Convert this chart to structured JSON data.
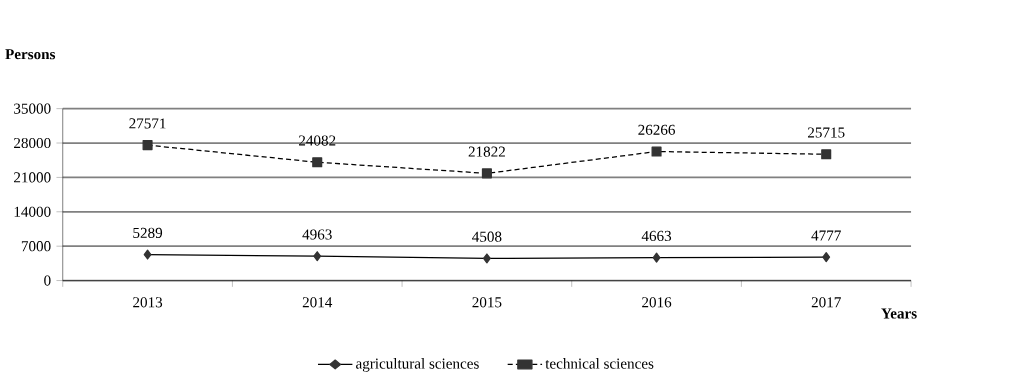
{
  "chart_data": {
    "type": "line",
    "xlabel": "Years",
    "ylabel": "Persons",
    "categories": [
      "2013",
      "2014",
      "2015",
      "2016",
      "2017"
    ],
    "series": [
      {
        "name": "agricultural sciences",
        "color": "#000000",
        "marker": "diamond",
        "line_style": "solid",
        "values": [
          5289,
          4963,
          4508,
          4663,
          4777
        ]
      },
      {
        "name": "technical sciences",
        "color": "#000000",
        "marker": "square",
        "line_style": "dashed",
        "values": [
          27571,
          24082,
          21822,
          26266,
          25715
        ]
      }
    ],
    "ylim": [
      0,
      35000
    ],
    "yticks": [
      0,
      7000,
      14000,
      21000,
      28000,
      35000
    ],
    "grid": "y",
    "legend": "bottom",
    "data_labels": true
  }
}
